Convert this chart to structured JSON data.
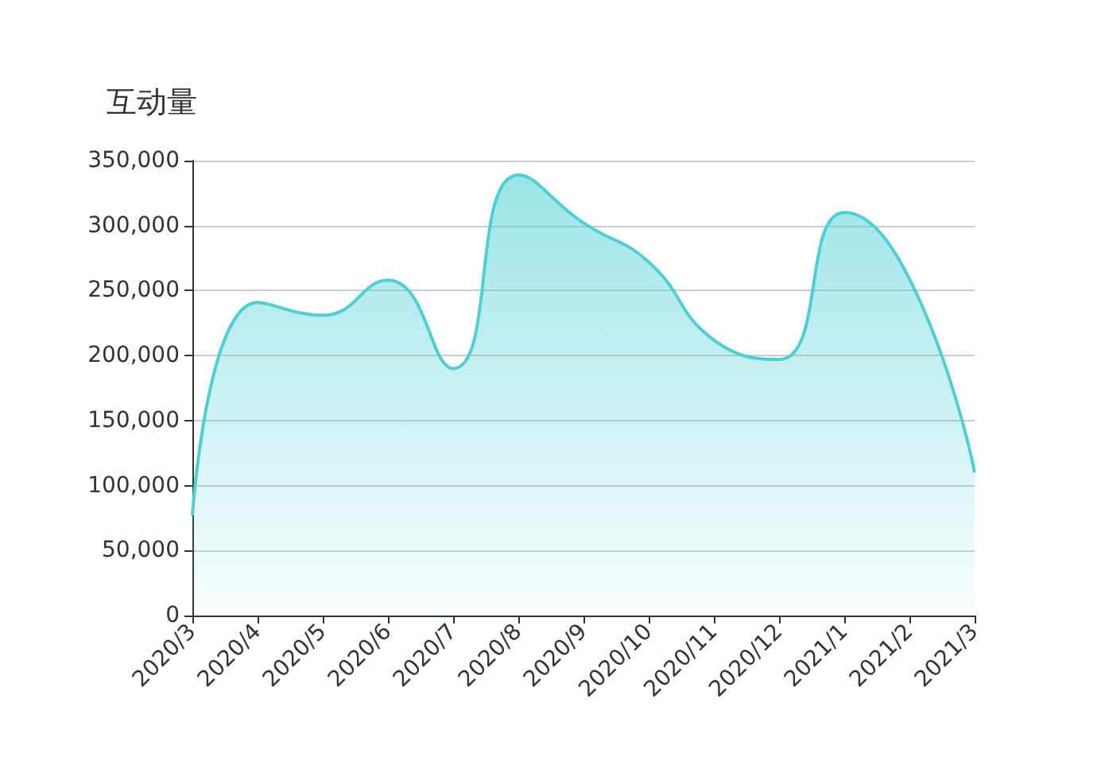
{
  "chart_data": {
    "type": "area",
    "title": "互动量",
    "categories": [
      "2020/3",
      "2020/4",
      "2020/5",
      "2020/6",
      "2020/7",
      "2020/8",
      "2020/9",
      "2020/10",
      "2020/11",
      "2020/12",
      "2021/1",
      "2021/2",
      "2021/3"
    ],
    "values": [
      77000,
      241000,
      231000,
      258000,
      190000,
      339000,
      302000,
      272000,
      212000,
      197000,
      310000,
      259000,
      110000
    ],
    "color": "#4ecfd4",
    "ylim": [
      0,
      350000
    ],
    "yticks": [
      0,
      {
        "value": 50000,
        "label": "50,000"
      },
      {
        "value": 100000,
        "label": "100,000"
      },
      {
        "value": 150000,
        "label": "150,000"
      },
      {
        "value": 200000,
        "label": "200,000"
      },
      {
        "value": 250000,
        "label": "250,000"
      },
      {
        "value": 300000,
        "label": "300,000"
      },
      {
        "value": 350000,
        "label": "350,000"
      }
    ],
    "grid": "y",
    "marker": "none"
  }
}
